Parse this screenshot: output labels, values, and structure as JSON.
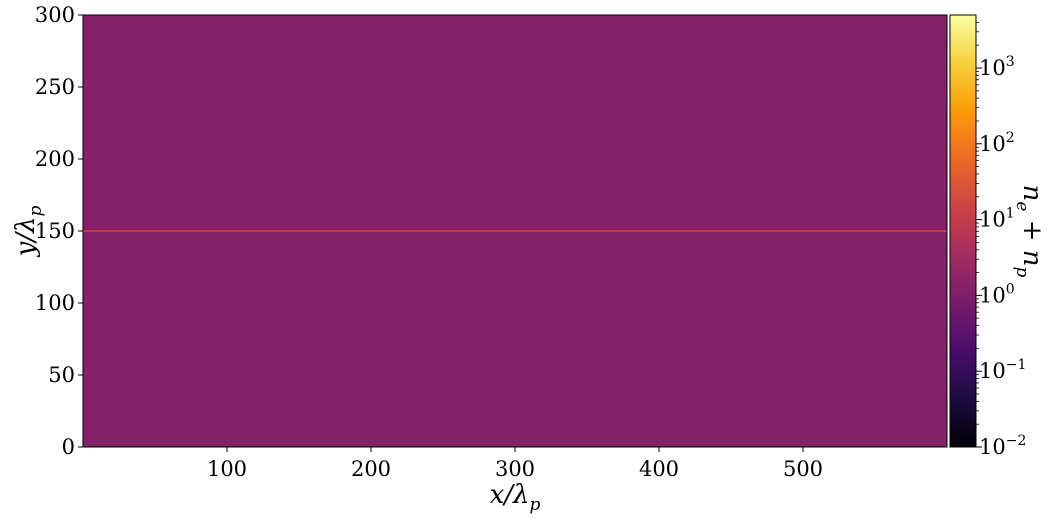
{
  "chart_data": {
    "type": "heatmap",
    "title": "",
    "xlabel": {
      "base": "x/λ",
      "sub": "p"
    },
    "ylabel": {
      "base": "y/λ",
      "sub": "p"
    },
    "xlim": [
      0,
      600
    ],
    "ylim": [
      0,
      300
    ],
    "xticks": [
      100,
      200,
      300,
      400,
      500
    ],
    "yticks": [
      0,
      50,
      100,
      150,
      200,
      250,
      300
    ],
    "background_value": 1.2,
    "features": [
      {
        "kind": "horizontal-line",
        "y": 150,
        "value": 8
      }
    ],
    "colorbar": {
      "label": {
        "base": "n",
        "sub1": "e",
        "mid": " + n",
        "sub2": "p"
      },
      "scale": "log",
      "range": [
        0.01,
        5000
      ],
      "ticks": [
        {
          "value": 0.01,
          "base": "10",
          "exp": "−2"
        },
        {
          "value": 0.1,
          "base": "10",
          "exp": "−1"
        },
        {
          "value": 1,
          "base": "10",
          "exp": "0"
        },
        {
          "value": 10,
          "base": "10",
          "exp": "1"
        },
        {
          "value": 100,
          "base": "10",
          "exp": "2"
        },
        {
          "value": 1000,
          "base": "10",
          "exp": "3"
        }
      ],
      "colormap": "inferno",
      "colors": [
        "#000004",
        "#1b0c41",
        "#4a0c6b",
        "#781c6d",
        "#a52c60",
        "#cf4446",
        "#ed6925",
        "#fb9b06",
        "#f7d13d",
        "#fcffa4"
      ]
    },
    "grid": false
  }
}
